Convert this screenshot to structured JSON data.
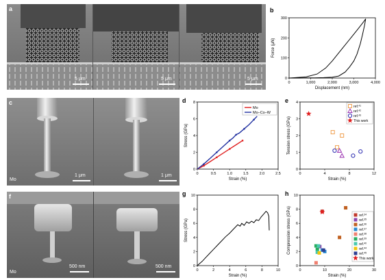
{
  "panels": {
    "a": {
      "letter": "a",
      "scalebars": [
        "5 μm",
        "5 μm",
        "5 μm"
      ]
    },
    "c": {
      "letter": "c",
      "material": "Mo",
      "scalebars": [
        "1 μm",
        "1 μm"
      ]
    },
    "f": {
      "letter": "f",
      "material": "Mo",
      "scalebars": [
        "500 nm",
        "500 nm"
      ]
    }
  },
  "chart_data": [
    {
      "id": "b",
      "letter": "b",
      "type": "line",
      "xlabel": "Displacement (nm)",
      "ylabel": "Force (μN)",
      "xlim": [
        0,
        4000
      ],
      "ylim": [
        0,
        300
      ],
      "xticks": [
        "0",
        "1,000",
        "2,000",
        "3,000",
        "4,000"
      ],
      "xtick_values": [
        0,
        1000,
        2000,
        3000,
        4000
      ],
      "yticks": [
        "0",
        "100",
        "200",
        "300"
      ],
      "ytick_values": [
        0,
        100,
        200,
        300
      ],
      "series": [
        {
          "color": "#000000",
          "x": [
            0,
            300,
            800,
            1300,
            1700,
            2000,
            2300,
            2600,
            2900,
            3200,
            3450,
            3550,
            3500,
            3400,
            3300,
            3150,
            3000,
            2800,
            2600,
            2300,
            2000,
            1600,
            1200,
            800,
            400,
            0
          ],
          "y": [
            0,
            2,
            6,
            20,
            50,
            85,
            125,
            165,
            205,
            245,
            280,
            295,
            265,
            215,
            170,
            120,
            85,
            55,
            30,
            10,
            4,
            2,
            1,
            1,
            0,
            0
          ]
        }
      ]
    },
    {
      "id": "d",
      "letter": "d",
      "type": "line",
      "xlabel": "Strain (%)",
      "ylabel": "Stress (GPa)",
      "xlim": [
        0,
        2.5
      ],
      "ylim": [
        0,
        8
      ],
      "xticks": [
        "0",
        "0.5",
        "1.0",
        "1.5",
        "2.0",
        "2.5"
      ],
      "xtick_values": [
        0,
        0.5,
        1.0,
        1.5,
        2.0,
        2.5
      ],
      "yticks": [
        "0",
        "2",
        "4",
        "6",
        "8"
      ],
      "ytick_values": [
        0,
        2,
        4,
        6,
        8
      ],
      "legend": "top-right",
      "series": [
        {
          "name": "Mo",
          "color": "#e01e1e",
          "x": [
            0,
            0.2,
            0.4,
            0.6,
            0.8,
            1.0,
            1.2,
            1.4
          ],
          "y": [
            0,
            0.4,
            0.9,
            1.4,
            1.9,
            2.4,
            2.9,
            3.4
          ]
        },
        {
          "name": "Mo–Co–W",
          "color": "#1f2fa0",
          "x": [
            0,
            0.2,
            0.4,
            0.6,
            0.8,
            1.0,
            1.1,
            1.2,
            1.3,
            1.45,
            1.6,
            1.75,
            1.85
          ],
          "y": [
            0,
            0.6,
            1.3,
            2.0,
            2.7,
            3.4,
            3.7,
            4.1,
            4.3,
            4.8,
            5.3,
            5.9,
            6.3
          ]
        }
      ]
    },
    {
      "id": "e",
      "letter": "e",
      "type": "scatter",
      "xlabel": "Strain (%)",
      "ylabel": "Tension stress (GPa)",
      "xlim": [
        0,
        12
      ],
      "ylim": [
        0,
        4
      ],
      "xticks": [
        "0",
        "4",
        "8",
        "12"
      ],
      "xtick_values": [
        0,
        4,
        8,
        12
      ],
      "yticks": [
        "0",
        "1",
        "2",
        "3",
        "4"
      ],
      "ytick_values": [
        0,
        1,
        2,
        3,
        4
      ],
      "legend": "top-right",
      "series": [
        {
          "name": "ref.",
          "sup": "41",
          "marker": "square",
          "color": "#f0a050",
          "x": [
            5.3,
            6.0,
            6.8
          ],
          "y": [
            2.2,
            1.3,
            2.0
          ]
        },
        {
          "name": "ref.",
          "sup": "42",
          "marker": "triangle",
          "color": "#9a30b0",
          "x": [
            6.4,
            6.8
          ],
          "y": [
            1.1,
            0.8
          ]
        },
        {
          "name": "ref.",
          "sup": "43",
          "marker": "circle",
          "color": "#2a2ab0",
          "x": [
            5.6,
            8.6,
            9.8
          ],
          "y": [
            1.1,
            0.8,
            1.05
          ]
        },
        {
          "name": "This work",
          "marker": "star",
          "color": "#e01e1e",
          "x": [
            1.4
          ],
          "y": [
            3.3
          ]
        }
      ]
    },
    {
      "id": "g",
      "letter": "g",
      "type": "line",
      "xlabel": "Strain (%)",
      "ylabel": "Stress (GPa)",
      "xlim": [
        0,
        10
      ],
      "ylim": [
        0,
        10
      ],
      "xticks": [
        "0",
        "2",
        "4",
        "6",
        "8",
        "10"
      ],
      "xtick_values": [
        0,
        2,
        4,
        6,
        8,
        10
      ],
      "yticks": [
        "0",
        "2",
        "4",
        "6",
        "8",
        "10"
      ],
      "ytick_values": [
        0,
        2,
        4,
        6,
        8,
        10
      ],
      "series": [
        {
          "color": "#000000",
          "x": [
            0,
            0.3,
            0.6,
            1.0,
            1.5,
            2.0,
            2.5,
            3.0,
            3.5,
            4.0,
            4.5,
            5.0,
            5.3,
            5.5,
            5.8,
            6.1,
            6.4,
            6.7,
            7.0,
            7.3,
            7.6,
            7.9,
            8.2,
            8.5,
            8.7,
            8.85,
            8.9
          ],
          "y": [
            0,
            0.3,
            0.6,
            1.1,
            1.7,
            2.3,
            2.9,
            3.5,
            4.1,
            4.6,
            5.2,
            5.8,
            5.6,
            6.0,
            5.7,
            6.2,
            6.0,
            6.3,
            6.1,
            6.5,
            6.4,
            6.9,
            7.3,
            7.7,
            7.5,
            7.0,
            5.0
          ]
        }
      ]
    },
    {
      "id": "h",
      "letter": "h",
      "type": "scatter",
      "xlabel": "Strain (%)",
      "ylabel": "Compression stress (GPa)",
      "xlim": [
        0,
        30
      ],
      "ylim": [
        0,
        10
      ],
      "xticks": [
        "0",
        "10",
        "20",
        "30"
      ],
      "xtick_values": [
        0,
        10,
        20,
        30
      ],
      "yticks": [
        "0",
        "2",
        "4",
        "6",
        "8",
        "10"
      ],
      "ytick_values": [
        0,
        2,
        4,
        6,
        8,
        10
      ],
      "legend": "right",
      "series": [
        {
          "name": "ref.",
          "sup": "34",
          "marker": "square",
          "color": "#c0392b",
          "x": [
            9
          ],
          "y": [
            7.7
          ]
        },
        {
          "name": "ref.",
          "sup": "35",
          "marker": "square",
          "color": "#8e44ad",
          "x": [
            8
          ],
          "y": [
            2.7
          ]
        },
        {
          "name": "ref.",
          "sup": "36",
          "marker": "square",
          "color": "#c06020",
          "x": [
            18.5,
            16
          ],
          "y": [
            8.2,
            4.0
          ]
        },
        {
          "name": "ref.",
          "sup": "37",
          "marker": "square",
          "color": "#2a8ad0",
          "x": [
            9,
            10
          ],
          "y": [
            2.2,
            2.0
          ]
        },
        {
          "name": "ref.",
          "sup": "38",
          "marker": "square",
          "color": "#f08070",
          "x": [
            6.5
          ],
          "y": [
            0.4
          ]
        },
        {
          "name": "ref.",
          "sup": "39",
          "marker": "square",
          "color": "#27ae60",
          "x": [
            6.5,
            7
          ],
          "y": [
            2.8,
            2.3
          ]
        },
        {
          "name": "ref.",
          "sup": "40",
          "marker": "square",
          "color": "#48c9b0",
          "x": [
            7,
            7.5
          ],
          "y": [
            1.9,
            2.8
          ]
        },
        {
          "name": "ref.",
          "sup": "44",
          "marker": "square",
          "color": "#f1c40f",
          "x": [
            7.8
          ],
          "y": [
            1.8
          ]
        },
        {
          "name": "ref.",
          "sup": "45",
          "marker": "square",
          "color": "#2c3e90",
          "x": [
            9.5
          ],
          "y": [
            2.2
          ]
        },
        {
          "name": "This work",
          "marker": "star",
          "color": "#e01e1e",
          "x": [
            9
          ],
          "y": [
            7.6
          ]
        }
      ]
    }
  ]
}
